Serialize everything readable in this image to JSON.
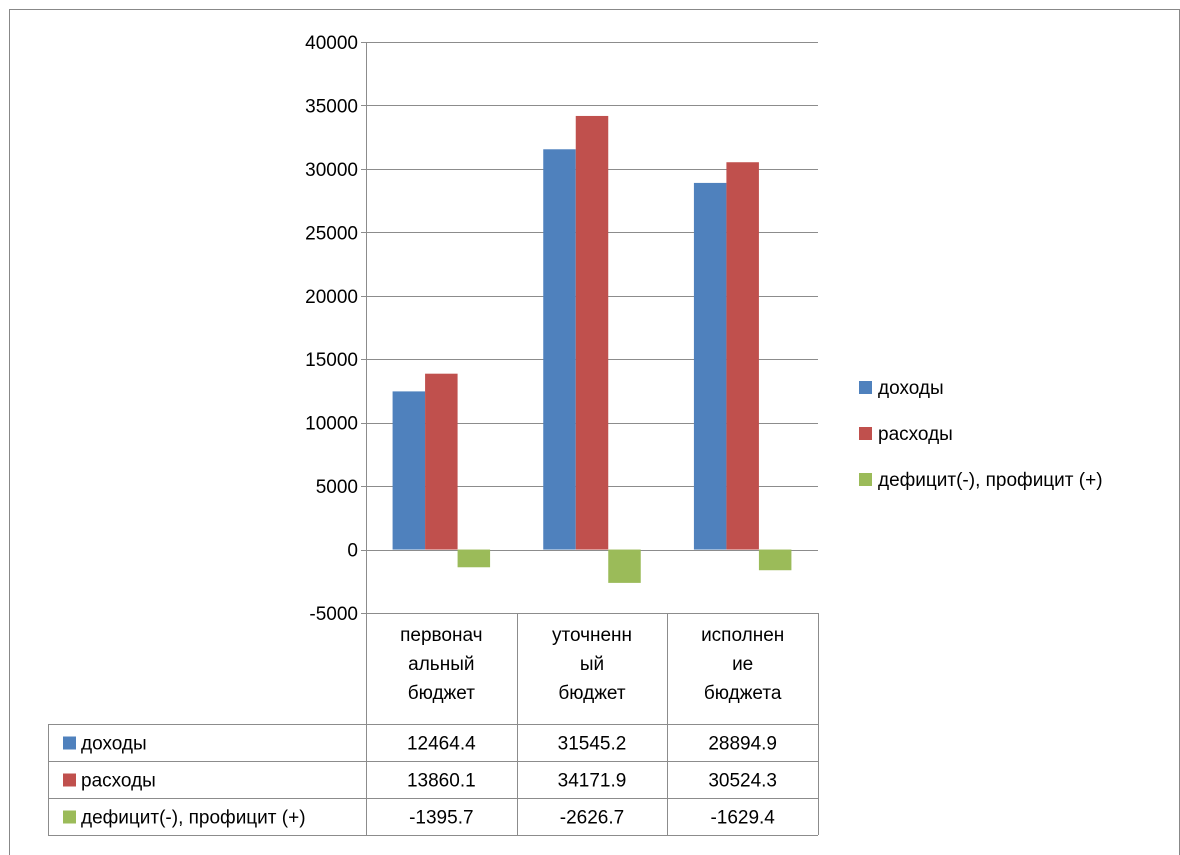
{
  "chart_data": {
    "type": "bar",
    "categories": [
      [
        "первонач",
        "альный",
        "бюджет"
      ],
      [
        "уточненн",
        "ый",
        "бюджет"
      ],
      [
        "исполнен",
        "ие",
        "бюджета"
      ]
    ],
    "series": [
      {
        "name": "доходы",
        "color": "#4f81bd",
        "values": [
          12464.4,
          31545.2,
          28894.9
        ],
        "labels": [
          "12464.4",
          "31545.2",
          "28894.9"
        ]
      },
      {
        "name": "расходы",
        "color": "#c0504d",
        "values": [
          13860.1,
          34171.9,
          30524.3
        ],
        "labels": [
          "13860.1",
          "34171.9",
          "30524.3"
        ]
      },
      {
        "name": "дефицит(-), профицит (+)",
        "color": "#9bbb59",
        "values": [
          -1395.7,
          -2626.7,
          -1629.4
        ],
        "labels": [
          "-1395.7",
          "-2626.7",
          "-1629.4"
        ]
      }
    ],
    "ylim": [
      -5000,
      40000
    ],
    "yticks": [
      40000,
      35000,
      30000,
      25000,
      20000,
      15000,
      10000,
      5000,
      0,
      -5000
    ],
    "grid": true,
    "legend": "right",
    "data_table": true
  }
}
